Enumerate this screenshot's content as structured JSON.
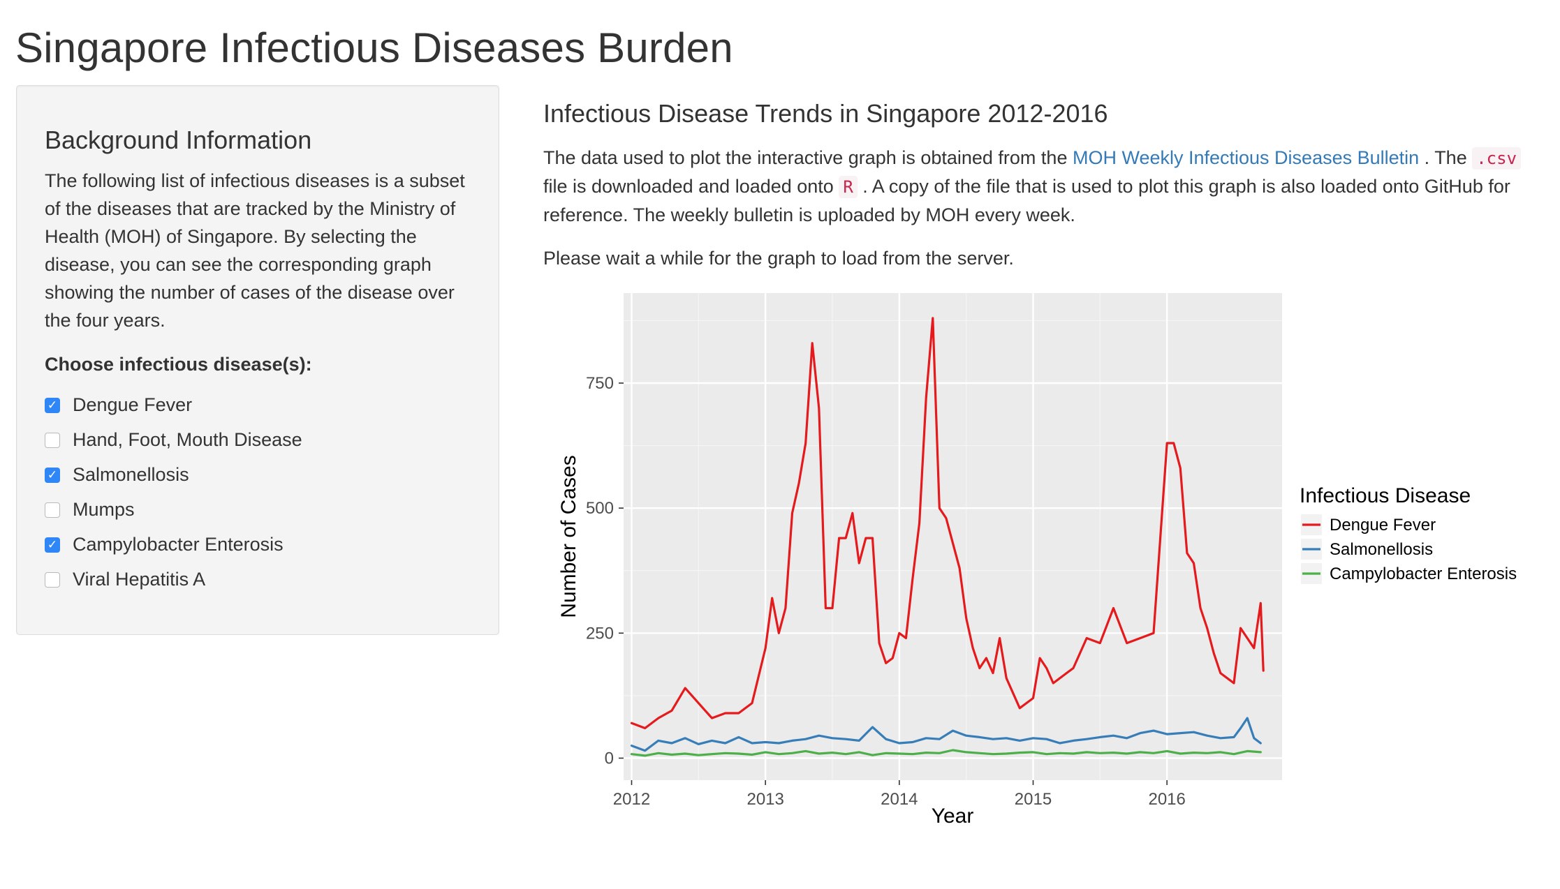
{
  "page": {
    "title": "Singapore Infectious Diseases Burden"
  },
  "sidebar": {
    "heading": "Background Information",
    "description": "The following list of infectious diseases is a subset of the diseases that are tracked by the Ministry of Health (MOH) of Singapore. By selecting the disease, you can see the corresponding graph showing the number of cases of the disease over the four years.",
    "choose_label": "Choose infectious disease(s):",
    "options": [
      {
        "label": "Dengue Fever",
        "checked": true
      },
      {
        "label": "Hand, Foot, Mouth Disease",
        "checked": false
      },
      {
        "label": "Salmonellosis",
        "checked": true
      },
      {
        "label": "Mumps",
        "checked": false
      },
      {
        "label": "Campylobacter Enterosis",
        "checked": true
      },
      {
        "label": "Viral Hepatitis A",
        "checked": false
      }
    ]
  },
  "main": {
    "heading": "Infectious Disease Trends in Singapore 2012-2016",
    "para1_before": "The data used to plot the interactive graph is obtained from the ",
    "link_text": "MOH Weekly Infectious Diseases Bulletin",
    "para1_after_link": " . The ",
    "code_csv": ".csv",
    "para1_mid": " file is downloaded and loaded onto ",
    "code_r": "R",
    "para1_end": " . A copy of the file that is used to plot this graph is also loaded onto GitHub for reference. The weekly bulletin is uploaded by MOH every week.",
    "para2": "Please wait a while for the graph to load from the server."
  },
  "colors": {
    "dengue": "#e41a1c",
    "salmonellosis": "#377eb8",
    "campylobacter": "#4daf4a",
    "panel_bg": "#ebebeb",
    "checkbox_checked": "#2f86f6"
  },
  "chart_data": {
    "type": "line",
    "xlabel": "Year",
    "ylabel": "Number of Cases",
    "xlim": [
      2011.94,
      2016.86
    ],
    "ylim": [
      -44,
      930
    ],
    "x_ticks": [
      2012,
      2013,
      2014,
      2015,
      2016
    ],
    "y_ticks": [
      0,
      250,
      500,
      750
    ],
    "grid": true,
    "legend_title": "Infectious Disease",
    "legend_position": "right",
    "series": [
      {
        "name": "Dengue Fever",
        "color": "#e41a1c",
        "x": [
          2012.0,
          2012.1,
          2012.2,
          2012.3,
          2012.4,
          2012.5,
          2012.6,
          2012.7,
          2012.8,
          2012.9,
          2013.0,
          2013.05,
          2013.1,
          2013.15,
          2013.2,
          2013.25,
          2013.3,
          2013.35,
          2013.4,
          2013.45,
          2013.5,
          2013.55,
          2013.6,
          2013.65,
          2013.7,
          2013.75,
          2013.8,
          2013.85,
          2013.9,
          2013.95,
          2014.0,
          2014.05,
          2014.1,
          2014.15,
          2014.2,
          2014.25,
          2014.3,
          2014.35,
          2014.4,
          2014.45,
          2014.5,
          2014.55,
          2014.6,
          2014.65,
          2014.7,
          2014.75,
          2014.8,
          2014.9,
          2015.0,
          2015.05,
          2015.1,
          2015.15,
          2015.2,
          2015.3,
          2015.4,
          2015.5,
          2015.6,
          2015.7,
          2015.8,
          2015.9,
          2016.0,
          2016.05,
          2016.1,
          2016.15,
          2016.2,
          2016.25,
          2016.3,
          2016.35,
          2016.4,
          2016.45,
          2016.5,
          2016.55,
          2016.6,
          2016.65,
          2016.7,
          2016.72
        ],
        "y": [
          70,
          60,
          80,
          95,
          140,
          110,
          80,
          90,
          90,
          110,
          220,
          320,
          250,
          300,
          490,
          550,
          630,
          830,
          700,
          300,
          300,
          440,
          440,
          490,
          390,
          440,
          440,
          230,
          190,
          200,
          250,
          240,
          360,
          470,
          720,
          880,
          500,
          480,
          430,
          380,
          280,
          220,
          180,
          200,
          170,
          240,
          160,
          100,
          120,
          200,
          180,
          150,
          160,
          180,
          240,
          230,
          300,
          230,
          240,
          250,
          630,
          630,
          580,
          410,
          390,
          300,
          260,
          210,
          170,
          160,
          150,
          260,
          240,
          220,
          310,
          175
        ]
      },
      {
        "name": "Salmonellosis",
        "color": "#377eb8",
        "x": [
          2012.0,
          2012.1,
          2012.2,
          2012.3,
          2012.4,
          2012.5,
          2012.6,
          2012.7,
          2012.8,
          2012.9,
          2013.0,
          2013.1,
          2013.2,
          2013.3,
          2013.4,
          2013.5,
          2013.6,
          2013.7,
          2013.8,
          2013.9,
          2014.0,
          2014.1,
          2014.2,
          2014.3,
          2014.4,
          2014.5,
          2014.6,
          2014.7,
          2014.8,
          2014.9,
          2015.0,
          2015.1,
          2015.2,
          2015.3,
          2015.4,
          2015.5,
          2015.6,
          2015.7,
          2015.8,
          2015.9,
          2016.0,
          2016.1,
          2016.2,
          2016.3,
          2016.4,
          2016.5,
          2016.55,
          2016.6,
          2016.65,
          2016.7
        ],
        "y": [
          25,
          15,
          35,
          30,
          40,
          28,
          35,
          30,
          42,
          30,
          32,
          30,
          35,
          38,
          45,
          40,
          38,
          35,
          62,
          38,
          30,
          32,
          40,
          38,
          55,
          45,
          42,
          38,
          40,
          35,
          40,
          38,
          30,
          35,
          38,
          42,
          45,
          40,
          50,
          55,
          48,
          50,
          52,
          45,
          40,
          42,
          60,
          80,
          40,
          30
        ]
      },
      {
        "name": "Campylobacter Enterosis",
        "color": "#4daf4a",
        "x": [
          2012.0,
          2012.1,
          2012.2,
          2012.3,
          2012.4,
          2012.5,
          2012.6,
          2012.7,
          2012.8,
          2012.9,
          2013.0,
          2013.1,
          2013.2,
          2013.3,
          2013.4,
          2013.5,
          2013.6,
          2013.7,
          2013.8,
          2013.9,
          2014.0,
          2014.1,
          2014.2,
          2014.3,
          2014.4,
          2014.5,
          2014.6,
          2014.7,
          2014.8,
          2014.9,
          2015.0,
          2015.1,
          2015.2,
          2015.3,
          2015.4,
          2015.5,
          2015.6,
          2015.7,
          2015.8,
          2015.9,
          2016.0,
          2016.1,
          2016.2,
          2016.3,
          2016.4,
          2016.5,
          2016.6,
          2016.7
        ],
        "y": [
          8,
          5,
          10,
          7,
          9,
          6,
          8,
          10,
          9,
          7,
          12,
          8,
          10,
          14,
          9,
          11,
          8,
          12,
          6,
          10,
          9,
          8,
          11,
          10,
          16,
          12,
          10,
          8,
          9,
          11,
          12,
          8,
          10,
          9,
          12,
          10,
          11,
          9,
          12,
          10,
          14,
          9,
          11,
          10,
          12,
          8,
          14,
          12
        ]
      }
    ]
  }
}
